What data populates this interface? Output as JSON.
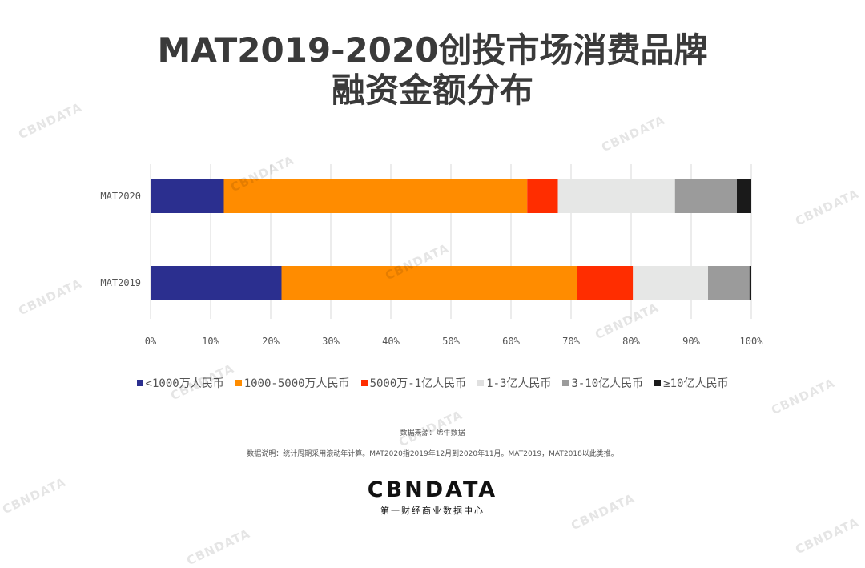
{
  "title_line1": "MAT2019-2020创投市场消费品牌",
  "title_line2": "融资金额分布",
  "chart_data": {
    "type": "bar",
    "orientation": "horizontal",
    "stacked": true,
    "percent": true,
    "categories": [
      "MAT2020",
      "MAT2019"
    ],
    "series": [
      {
        "name": "<1000万人民币",
        "color": "#2b2f8f",
        "values": [
          12.2,
          21.8
        ]
      },
      {
        "name": "1000-5000万人民币",
        "color": "#ff8c00",
        "values": [
          50.5,
          49.2
        ]
      },
      {
        "name": "5000万-1亿人民币",
        "color": "#ff2d00",
        "values": [
          5.1,
          9.3
        ]
      },
      {
        "name": "1-3亿人民币",
        "color": "#e6e7e6",
        "values": [
          19.5,
          12.5
        ]
      },
      {
        "name": "3-10亿人民币",
        "color": "#9b9b9b",
        "values": [
          10.3,
          6.9
        ]
      },
      {
        "name": "≥10亿人民币",
        "color": "#1a1a1a",
        "values": [
          2.4,
          0.3
        ]
      }
    ],
    "xlim": [
      0,
      100
    ],
    "xticks": [
      "0%",
      "10%",
      "20%",
      "30%",
      "40%",
      "50%",
      "60%",
      "70%",
      "80%",
      "90%",
      "100%"
    ],
    "gridlines": true,
    "legend_position": "bottom"
  },
  "source_text": "数据来源：烯牛数据",
  "note_text": "数据说明：统计周期采用滚动年计算。MAT2020指2019年12月到2020年11月。MAT2019，MAT2018以此类推。",
  "brand": {
    "name": "CBNDATA",
    "subtitle": "第一财经商业数据中心"
  },
  "watermark_text": "CBNDATA"
}
